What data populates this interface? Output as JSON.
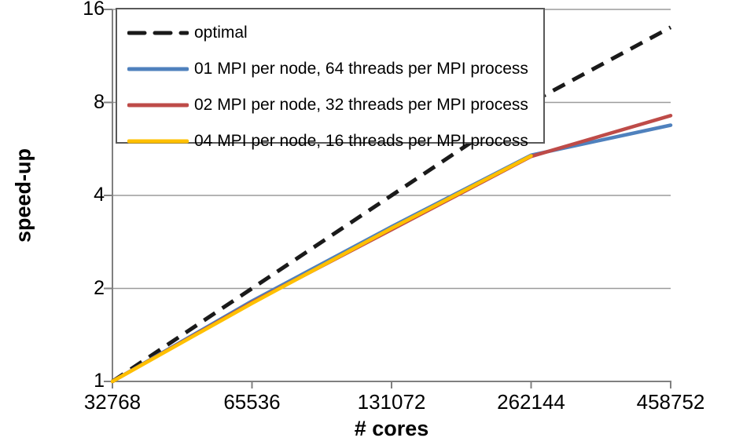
{
  "chart_data": {
    "type": "line",
    "title": "",
    "xlabel": "# cores",
    "ylabel": "speed-up",
    "x_scale": "log2 (equally spaced category ticks)",
    "y_scale": "log2",
    "grid": "horizontal gridlines only",
    "legend_position": "top-left inside plot, boxed",
    "categories": [
      "32768",
      "65536",
      "131072",
      "262144",
      "458752"
    ],
    "x_tick_labels": [
      "32768",
      "65536",
      "131072",
      "262144",
      "458752"
    ],
    "y_ticks": [
      1,
      2,
      4,
      8,
      16
    ],
    "y_tick_labels": [
      "1",
      "2",
      "4",
      "8",
      "16"
    ],
    "ylim": [
      1,
      16
    ],
    "series": [
      {
        "name": "optimal",
        "color": "#1a1a1a",
        "style": "dashed",
        "values": [
          1,
          2,
          4,
          8,
          14
        ]
      },
      {
        "name": "01 MPI per node, 64 threads per MPI process",
        "color": "#4F81BD",
        "style": "solid",
        "values": [
          1,
          1.82,
          3.17,
          5.4,
          6.75
        ]
      },
      {
        "name": "02 MPI per node, 32 threads per MPI process",
        "color": "#BE4B48",
        "style": "solid",
        "values": [
          1,
          1.8,
          3.1,
          5.35,
          7.25
        ]
      },
      {
        "name": "04 MPI per node, 16 threads per MPI process",
        "color": "#FFC000",
        "style": "solid",
        "values": [
          1,
          1.79,
          3.13,
          5.37,
          null
        ]
      }
    ],
    "colors": {
      "gridline": "#9b9b9b",
      "axis": "#808080",
      "text": "#000000",
      "legend_border": "#595959"
    }
  }
}
